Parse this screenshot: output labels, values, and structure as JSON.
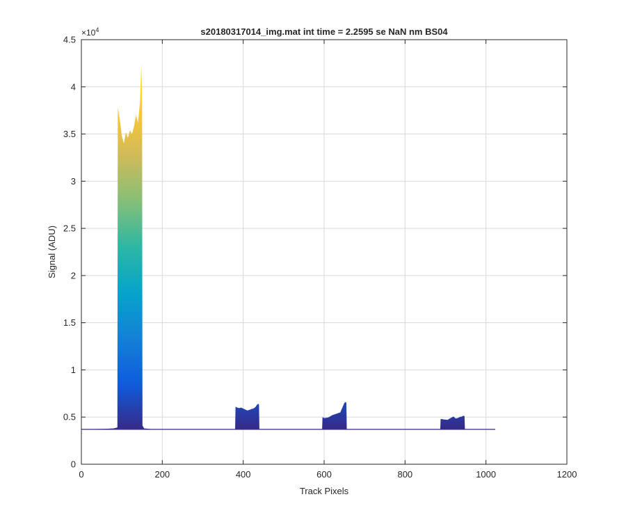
{
  "chart_data": {
    "type": "area",
    "title": "s20180317014_img.mat int time = 2.2595 se  NaN nm BS04",
    "xlabel": "Track Pixels",
    "ylabel": "Signal (ADU)",
    "y_exponent_label": "×10",
    "y_exponent_power": "4",
    "xlim": [
      0,
      1200
    ],
    "ylim": [
      0,
      45000
    ],
    "x_ticks": [
      0,
      200,
      400,
      600,
      800,
      1000,
      1200
    ],
    "y_ticks": [
      0,
      5000,
      10000,
      15000,
      20000,
      25000,
      30000,
      35000,
      40000,
      45000
    ],
    "x_tick_labels": [
      "0",
      "200",
      "400",
      "600",
      "800",
      "1000",
      "1200"
    ],
    "y_tick_labels": [
      "0",
      "0.5",
      "1",
      "1.5",
      "2",
      "2.5",
      "3",
      "3.5",
      "4",
      "4.5"
    ],
    "grid": true,
    "colormap": [
      "#352a87",
      "#0f5cdd",
      "#1481d6",
      "#06a4ca",
      "#2eb7a4",
      "#87bf77",
      "#d1bb59",
      "#fec832",
      "#f9fb0e"
    ],
    "baseline": 3700,
    "x_end": 1023,
    "peaks": [
      {
        "x": [
          0,
          60,
          80,
          89,
          90,
          95,
          100,
          105,
          110,
          115,
          120,
          125,
          130,
          135,
          140,
          145,
          148,
          150,
          151,
          155,
          180,
          200
        ],
        "y": [
          3700,
          3750,
          3800,
          3900,
          37800,
          36500,
          34800,
          34000,
          35200,
          34600,
          35400,
          35000,
          35800,
          37000,
          36200,
          38500,
          42500,
          40000,
          4100,
          3800,
          3700,
          3700
        ]
      },
      {
        "x": [
          380,
          381,
          385,
          390,
          395,
          400,
          405,
          410,
          415,
          420,
          425,
          430,
          435,
          438,
          439,
          440
        ],
        "y": [
          3700,
          6100,
          6000,
          5950,
          6000,
          5900,
          5800,
          5700,
          5750,
          5850,
          5900,
          6050,
          6350,
          6400,
          6300,
          3700
        ]
      },
      {
        "x": [
          595,
          596,
          600,
          610,
          620,
          630,
          640,
          645,
          650,
          653,
          655,
          656
        ],
        "y": [
          3700,
          5000,
          4900,
          4950,
          5200,
          5350,
          5500,
          6000,
          6500,
          6600,
          6500,
          3700
        ]
      },
      {
        "x": [
          887,
          888,
          895,
          905,
          915,
          920,
          925,
          930,
          935,
          940,
          945,
          947,
          948
        ],
        "y": [
          3700,
          4800,
          4750,
          4700,
          4950,
          5050,
          4850,
          4900,
          5000,
          5050,
          5150,
          5100,
          3700
        ]
      }
    ]
  }
}
